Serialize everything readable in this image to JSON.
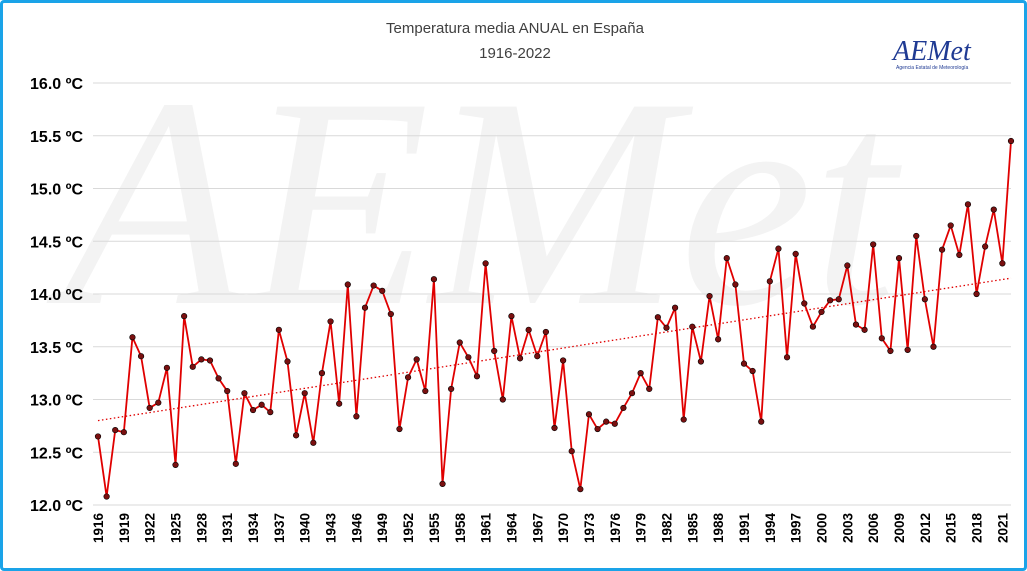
{
  "chart_data": {
    "type": "line",
    "title": "Temperatura media ANUAL en España",
    "subtitle": "1916-2022",
    "x_start": 1916,
    "x_end": 2022,
    "xtick_years": [
      1916,
      1919,
      1922,
      1925,
      1928,
      1931,
      1934,
      1937,
      1940,
      1943,
      1946,
      1949,
      1952,
      1955,
      1958,
      1961,
      1964,
      1967,
      1970,
      1973,
      1976,
      1979,
      1982,
      1985,
      1988,
      1991,
      1994,
      1997,
      2000,
      2003,
      2006,
      2009,
      2012,
      2015,
      2018,
      2021
    ],
    "yticks": [
      "12.0 ºC",
      "12.5 ºC",
      "13.0 ºC",
      "13.5 ºC",
      "14.0 ºC",
      "14.5 ºC",
      "15.0 ºC",
      "15.5 ºC",
      "16.0 ºC"
    ],
    "ylim": [
      12.0,
      16.0
    ],
    "series": [
      {
        "name": "Temperatura media anual",
        "color": "#e00000",
        "marker_color": "#7a1010",
        "values": [
          12.65,
          12.08,
          12.71,
          12.69,
          13.59,
          13.41,
          12.92,
          12.97,
          13.3,
          12.38,
          13.79,
          13.31,
          13.38,
          13.37,
          13.2,
          13.08,
          12.39,
          13.06,
          12.9,
          12.95,
          12.88,
          13.66,
          13.36,
          12.66,
          13.06,
          12.59,
          13.25,
          13.74,
          12.96,
          14.09,
          12.84,
          13.87,
          14.08,
          14.03,
          13.81,
          12.72,
          13.21,
          13.38,
          13.08,
          14.14,
          12.2,
          13.1,
          13.54,
          13.4,
          13.22,
          14.29,
          13.46,
          13.0,
          13.79,
          13.39,
          13.66,
          13.41,
          13.64,
          12.73,
          13.37,
          12.51,
          12.15,
          12.86,
          12.72,
          12.79,
          12.77,
          12.92,
          13.06,
          13.25,
          13.1,
          13.78,
          13.68,
          13.87,
          12.81,
          13.69,
          13.36,
          13.98,
          13.57,
          14.34,
          14.09,
          13.34,
          13.27,
          12.79,
          14.12,
          14.43,
          13.4,
          14.38,
          13.91,
          13.69,
          13.83,
          13.94,
          13.95,
          14.27,
          13.71,
          13.66,
          14.47,
          13.58,
          13.46,
          14.34,
          13.47,
          14.55,
          13.95,
          13.5,
          14.42,
          14.65,
          14.37,
          14.85,
          14.0,
          14.45,
          14.8,
          14.29,
          15.45
        ]
      },
      {
        "name": "Tendencia lineal",
        "type": "trend",
        "color": "#e00000",
        "start": 12.8,
        "end": 14.15
      }
    ],
    "logo_text": "AEMet",
    "logo_subtitle": "Agencia Estatal de Meteorología"
  }
}
